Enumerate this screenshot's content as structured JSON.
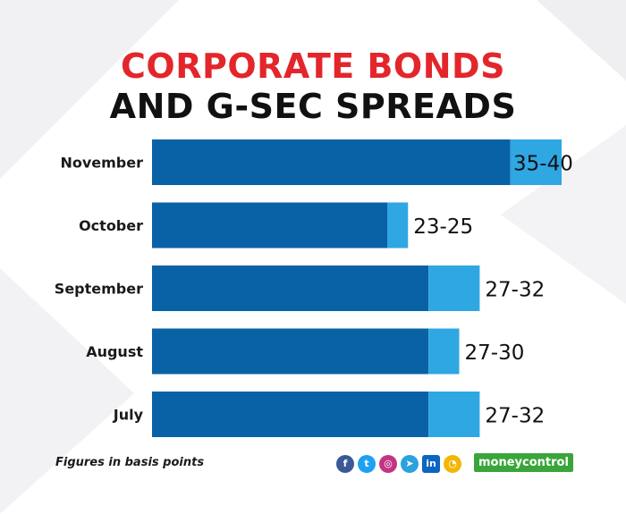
{
  "title_line1": "CORPORATE BONDS",
  "title_line2": "AND G-SEC SPREADS",
  "footnote": "Figures in basis points",
  "brand": "moneycontrol",
  "social_icons": [
    "facebook-icon",
    "twitter-icon",
    "instagram-icon",
    "telegram-icon",
    "linkedin-icon",
    "koo-icon"
  ],
  "colors": {
    "title_red": "#e3262b",
    "bar_low": "#0a62a6",
    "bar_range": "#2ea7e3"
  },
  "chart_data": {
    "type": "bar",
    "orientation": "horizontal",
    "stacked": true,
    "categories": [
      "November",
      "October",
      "September",
      "August",
      "July"
    ],
    "series": [
      {
        "values": [
          35,
          23,
          27,
          27,
          27
        ]
      },
      {
        "values": [
          5,
          2,
          5,
          3,
          5
        ]
      }
    ],
    "data_labels": [
      "35-40",
      "23-25",
      "27-32",
      "27-30",
      "27-32"
    ],
    "xlim": [
      0,
      40
    ],
    "grid": false
  }
}
